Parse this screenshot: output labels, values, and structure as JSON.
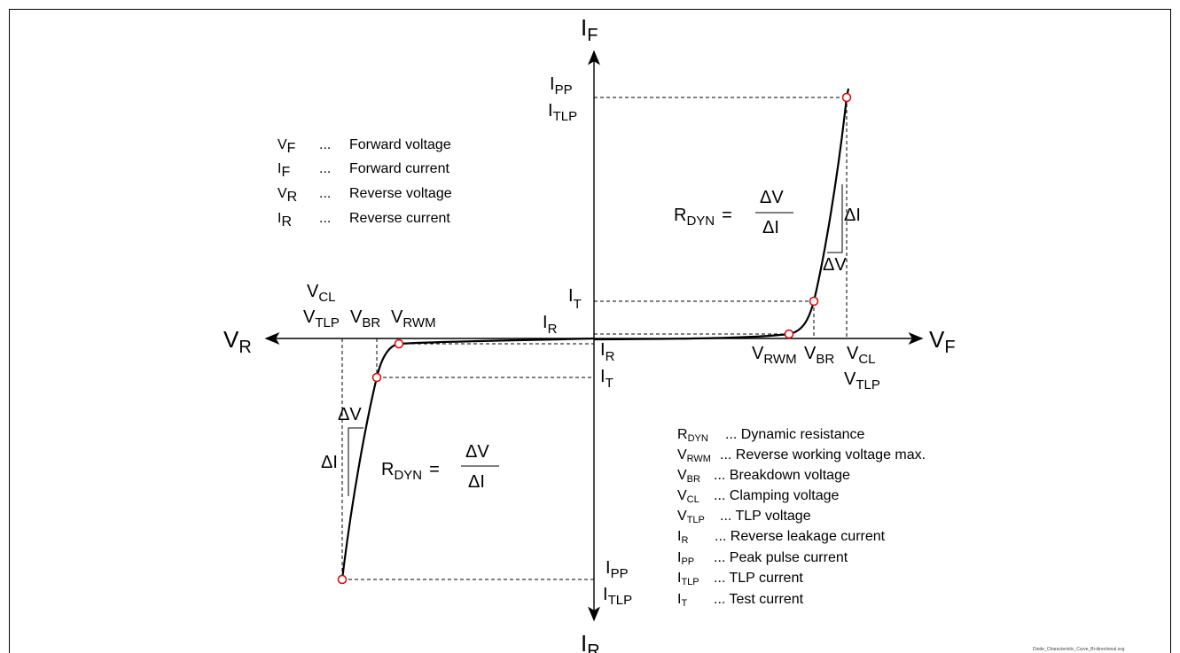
{
  "axes": {
    "if_main": "I",
    "if_sub": "F",
    "ir_main": "I",
    "ir_sub": "R",
    "vf_main": "V",
    "vf_sub": "F",
    "vr_main": "V",
    "vr_sub": "R"
  },
  "top_left_legend": [
    {
      "sym": "V",
      "sub": "F",
      "dots": "...",
      "desc": "Forward voltage"
    },
    {
      "sym": "I",
      "sub": "F",
      "dots": "...",
      "desc": "Forward current"
    },
    {
      "sym": "V",
      "sub": "R",
      "dots": "...",
      "desc": "Reverse voltage"
    },
    {
      "sym": "I",
      "sub": "R",
      "dots": "...",
      "desc": "Reverse current"
    }
  ],
  "labels": {
    "ipp_main": "I",
    "ipp_sub": "PP",
    "itlp_main": "I",
    "itlp_sub": "TLP",
    "it_main": "I",
    "it_sub": "T",
    "ir_main": "I",
    "ir_sub": "R",
    "v_main": "V",
    "vrwm_sub": "RWM",
    "vbr_sub": "BR",
    "vcl_sub": "CL",
    "vtlp_sub": "TLP",
    "delta_v": "ΔV",
    "delta_i": "ΔI",
    "rdyn_main": "R",
    "rdyn_sub": "DYN",
    "equals": "="
  },
  "bottom_right_legend": [
    {
      "sym": "R",
      "sub": "DYN",
      "desc": "... Dynamic resistance"
    },
    {
      "sym": "V",
      "sub": "RWM",
      "desc": "... Reverse working voltage max."
    },
    {
      "sym": "V",
      "sub": "BR",
      "desc": "... Breakdown voltage"
    },
    {
      "sym": "V",
      "sub": "CL",
      "desc": "... Clamping voltage"
    },
    {
      "sym": "V",
      "sub": "TLP",
      "desc": "... TLP voltage"
    },
    {
      "sym": "I",
      "sub": "R",
      "desc": "... Reverse leakage current"
    },
    {
      "sym": "I",
      "sub": "PP",
      "desc": "... Peak pulse current"
    },
    {
      "sym": "I",
      "sub": "TLP",
      "desc": "... TLP current"
    },
    {
      "sym": "I",
      "sub": "T",
      "desc": "... Test current"
    }
  ],
  "footer": "Diode_Characteristic_Curve_Bi-directional.svg",
  "colors": {
    "marker": "#e00000",
    "line": "#000000"
  }
}
